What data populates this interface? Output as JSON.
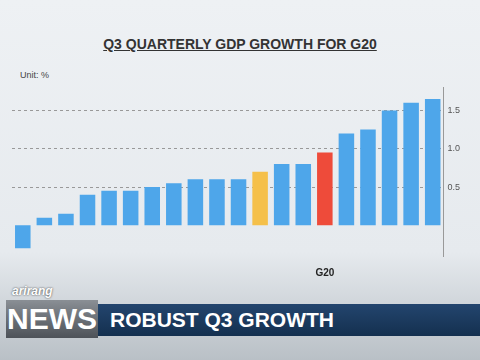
{
  "chart_data": {
    "type": "bar",
    "title": "Q3 QUARTERLY GDP GROWTH FOR G20",
    "y_label": "Unit: %",
    "categories": [
      null,
      null,
      null,
      null,
      null,
      null,
      null,
      null,
      null,
      null,
      null,
      null,
      null,
      null,
      "G20",
      null,
      null,
      null,
      null,
      null
    ],
    "values": [
      -0.3,
      0.1,
      0.15,
      0.4,
      0.45,
      0.45,
      0.5,
      0.55,
      0.6,
      0.6,
      0.6,
      0.7,
      0.8,
      0.8,
      0.95,
      1.2,
      1.25,
      1.5,
      1.6,
      1.65
    ],
    "colors": [
      "#4ea6ea",
      "#4ea6ea",
      "#4ea6ea",
      "#4ea6ea",
      "#4ea6ea",
      "#4ea6ea",
      "#4ea6ea",
      "#4ea6ea",
      "#4ea6ea",
      "#4ea6ea",
      "#4ea6ea",
      "#f5c04a",
      "#4ea6ea",
      "#4ea6ea",
      "#ee4b3a",
      "#4ea6ea",
      "#4ea6ea",
      "#4ea6ea",
      "#4ea6ea",
      "#4ea6ea"
    ],
    "ylim": [
      -0.4,
      1.8
    ],
    "yticks": [
      0.5,
      {
        "value": 1,
        "label": "1.0"
      },
      {
        "value": 1.5,
        "label": "1.5"
      }
    ],
    "grid": true
  },
  "banner": {
    "logo": "arirang",
    "program": "NEWS",
    "headline": "ROBUST Q3 GROWTH"
  }
}
